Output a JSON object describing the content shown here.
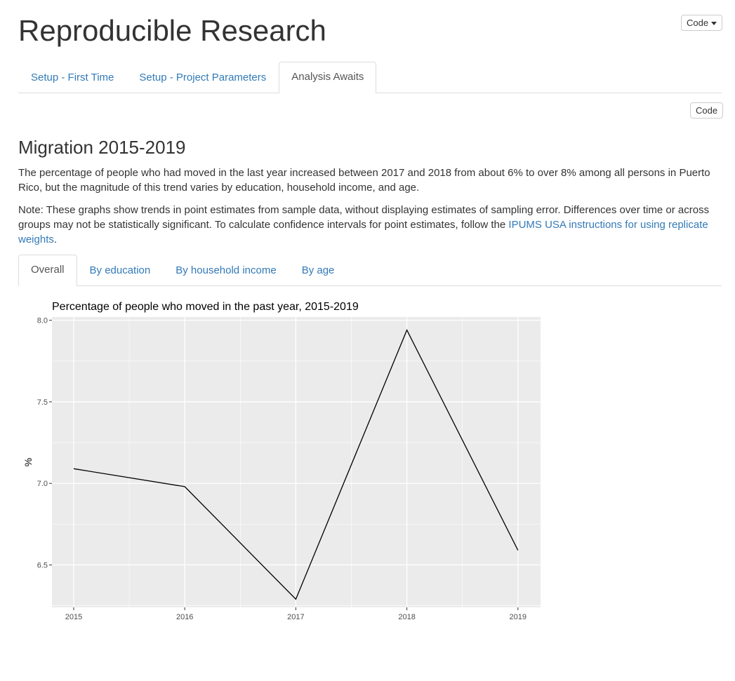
{
  "header": {
    "title": "Reproducible Research",
    "code_menu_label": "Code"
  },
  "top_tabs": [
    {
      "label": "Setup - First Time",
      "active": false
    },
    {
      "label": "Setup - Project Parameters",
      "active": false
    },
    {
      "label": "Analysis Awaits",
      "active": true
    }
  ],
  "section": {
    "code_button_label": "Code",
    "title": "Migration 2015-2019",
    "intro": "The percentage of people who had moved in the last year increased between 2017 and 2018 from about 6% to over 8% among all persons in Puerto Rico, but the magnitude of this trend varies by education, household income, and age.",
    "note_text": "Note: These graphs show trends in point estimates from sample data, without displaying estimates of sampling error. Differences over time or across groups may not be statistically significant. To calculate confidence intervals for point estimates, follow the ",
    "note_link": "IPUMS USA instructions for using replicate weights",
    "note_end": "."
  },
  "sub_tabs": [
    {
      "label": "Overall",
      "active": true
    },
    {
      "label": "By education",
      "active": false
    },
    {
      "label": "By household income",
      "active": false
    },
    {
      "label": "By age",
      "active": false
    }
  ],
  "colors": {
    "link": "#337ab7",
    "panel_background": "#ebebeb",
    "grid": "#ffffff",
    "line": "#000000"
  },
  "chart_data": {
    "type": "line",
    "title": "Percentage of people who moved in the past year, 2015-2019",
    "xlabel": "",
    "ylabel": "%",
    "x": [
      "2015",
      "2016",
      "2017",
      "2018",
      "2019"
    ],
    "series": [
      {
        "values": [
          7.09,
          6.98,
          6.29,
          7.94,
          6.59
        ]
      }
    ],
    "ylim": [
      6.24,
      8.02
    ],
    "yticks": [
      "6.5",
      "7.0",
      "7.5",
      "8.0"
    ],
    "grid": true,
    "legend": "none"
  }
}
